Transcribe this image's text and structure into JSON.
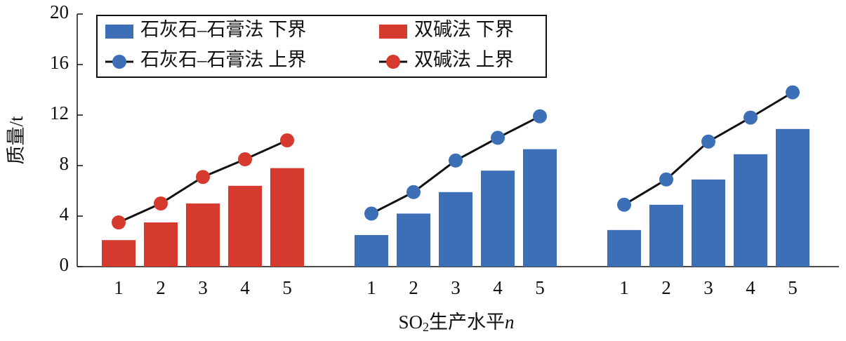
{
  "chart_data": {
    "type": "bar",
    "y_label": "质量/t",
    "x_label": [
      "SO",
      "2",
      "生产水平",
      "n"
    ],
    "categories": [
      "1",
      "2",
      "3",
      "4",
      "5",
      null,
      "1",
      "2",
      "3",
      "4",
      "5",
      null,
      "1",
      "2",
      "3",
      "4",
      "5"
    ],
    "ylim": [
      0,
      20
    ],
    "yticks": [
      0,
      4,
      8,
      12,
      16,
      20
    ],
    "legend": "upper-left",
    "series": [
      {
        "name": "石灰石–石膏法 下界",
        "type": "bar",
        "color": "#3d6fb6",
        "values": [
          null,
          null,
          null,
          null,
          null,
          null,
          2.5,
          4.2,
          5.9,
          7.6,
          9.3,
          null,
          2.9,
          4.9,
          6.9,
          8.9,
          10.9
        ]
      },
      {
        "name": "双碱法 下界",
        "type": "bar",
        "color": "#d63a2f",
        "values": [
          2.1,
          3.5,
          5.0,
          6.4,
          7.8,
          null,
          null,
          null,
          null,
          null,
          null,
          null,
          null,
          null,
          null,
          null,
          null
        ]
      },
      {
        "name": "石灰石–石膏法 上界",
        "type": "line",
        "color": "#3d6fb6",
        "values": [
          null,
          null,
          null,
          null,
          null,
          null,
          4.2,
          5.9,
          8.4,
          10.2,
          11.9,
          null,
          4.9,
          6.9,
          9.9,
          11.8,
          13.8
        ]
      },
      {
        "name": "双碱法 上界",
        "type": "line",
        "color": "#d63a2f",
        "values": [
          3.5,
          5.0,
          7.1,
          8.5,
          10.0,
          null,
          null,
          null,
          null,
          null,
          null,
          null,
          null,
          null,
          null,
          null,
          null
        ]
      }
    ]
  }
}
